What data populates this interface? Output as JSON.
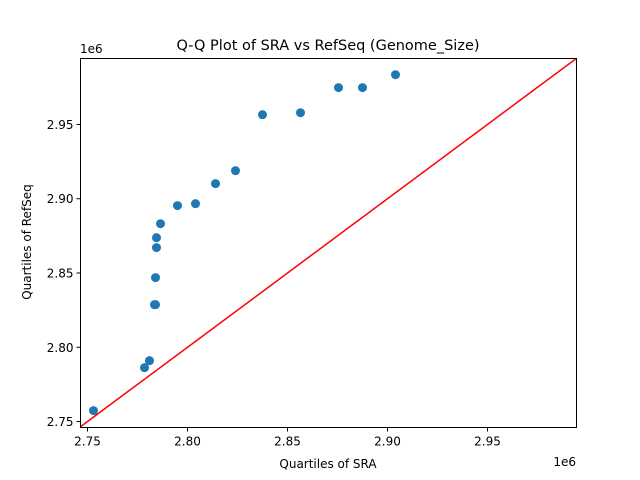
{
  "chart_data": {
    "type": "scatter",
    "title": "Q-Q Plot of SRA vs RefSeq (Genome_Size)",
    "xlabel": "Quartiles of SRA",
    "ylabel": "Quartiles of RefSeq",
    "x_offset_label": "1e6",
    "y_offset_label": "1e6",
    "xlim": [
      2.7465,
      2.9945
    ],
    "ylim": [
      2.746,
      2.9944
    ],
    "xticks": [
      2.75,
      2.8,
      2.85,
      2.9,
      2.95
    ],
    "xtick_labels": [
      "2.75",
      "2.80",
      "2.85",
      "2.90",
      "2.95"
    ],
    "yticks": [
      2.75,
      2.8,
      2.85,
      2.9,
      2.95
    ],
    "ytick_labels": [
      "2.75",
      "2.80",
      "2.85",
      "2.90",
      "2.95"
    ],
    "grid": false,
    "point_color": "#1f77b4",
    "line_color": "#ff0000",
    "reference_line": {
      "name": "y = x",
      "x": [
        2.7465,
        2.9945
      ],
      "y": [
        2.7465,
        2.9945
      ]
    },
    "points": {
      "x": [
        2.753,
        2.7785,
        2.781,
        2.7835,
        2.784,
        2.784,
        2.7845,
        2.7845,
        2.7865,
        2.795,
        2.804,
        2.814,
        2.824,
        2.8375,
        2.8565,
        2.8755,
        2.8875,
        2.904
      ],
      "y": [
        2.7574,
        2.7863,
        2.791,
        2.8287,
        2.8287,
        2.8469,
        2.8671,
        2.8738,
        2.8832,
        2.8954,
        2.8967,
        2.9102,
        2.9189,
        2.9566,
        2.9579,
        2.9748,
        2.9748,
        2.9835
      ]
    }
  }
}
